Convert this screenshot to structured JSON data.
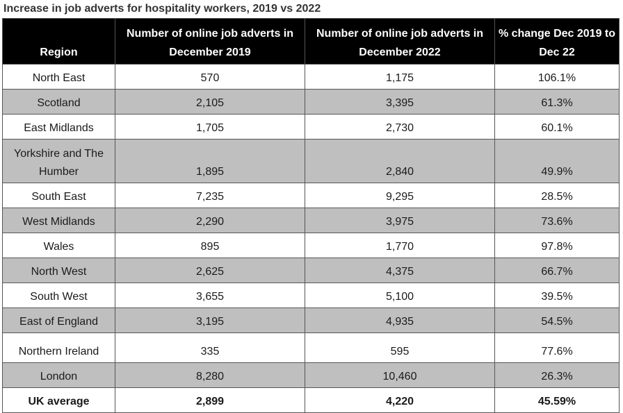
{
  "title": "Increase in job adverts for hospitality workers, 2019 vs 2022",
  "chart_data": {
    "type": "table",
    "title": "Increase in job adverts for hospitality workers, 2019 vs 2022",
    "columns": [
      "Region",
      "Number of online job adverts in December 2019",
      "Number of online job adverts in December 2022",
      "% change Dec 2019 to Dec 22"
    ],
    "rows": [
      {
        "region": "North East",
        "dec_2019": "570",
        "dec_2022": "1,175",
        "change": "106.1%"
      },
      {
        "region": "Scotland",
        "dec_2019": "2,105",
        "dec_2022": "3,395",
        "change": "61.3%"
      },
      {
        "region": "East Midlands",
        "dec_2019": "1,705",
        "dec_2022": "2,730",
        "change": "60.1%"
      },
      {
        "region": "Yorkshire and The Humber",
        "dec_2019": "1,895",
        "dec_2022": "2,840",
        "change": "49.9%"
      },
      {
        "region": "South East",
        "dec_2019": "7,235",
        "dec_2022": "9,295",
        "change": "28.5%"
      },
      {
        "region": "West Midlands",
        "dec_2019": "2,290",
        "dec_2022": "3,975",
        "change": "73.6%"
      },
      {
        "region": "Wales",
        "dec_2019": "895",
        "dec_2022": "1,770",
        "change": "97.8%"
      },
      {
        "region": "North West",
        "dec_2019": "2,625",
        "dec_2022": "4,375",
        "change": "66.7%"
      },
      {
        "region": "South West",
        "dec_2019": "3,655",
        "dec_2022": "5,100",
        "change": "39.5%"
      },
      {
        "region": "East of England",
        "dec_2019": "3,195",
        "dec_2022": "4,935",
        "change": "54.5%"
      },
      {
        "region": "Northern Ireland",
        "dec_2019": "335",
        "dec_2022": "595",
        "change": "77.6%"
      },
      {
        "region": "London",
        "dec_2019": "8,280",
        "dec_2022": "10,460",
        "change": "26.3%"
      }
    ],
    "total": {
      "region": "UK average",
      "dec_2019": "2,899",
      "dec_2022": "4,220",
      "change": "45.59%"
    },
    "colors": {
      "header_bg": "#000000",
      "header_text": "#ffffff",
      "shaded_row": "#bfbfbf",
      "plain_row": "#ffffff"
    }
  }
}
